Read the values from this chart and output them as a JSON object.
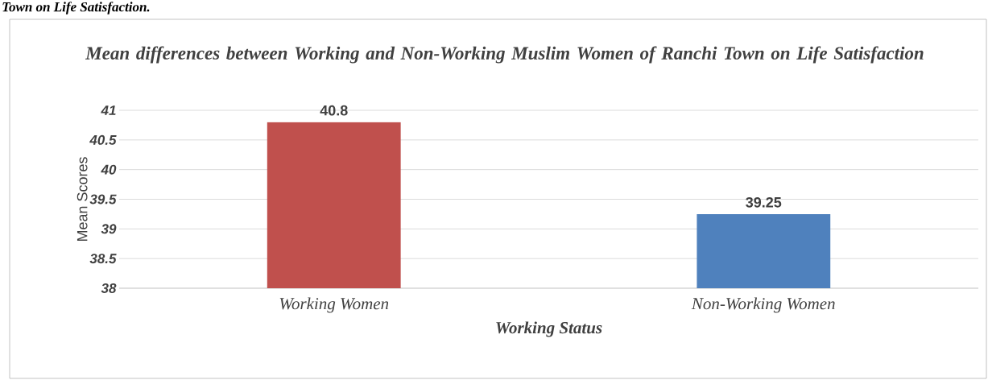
{
  "chart_data": {
    "type": "bar",
    "title": "Mean differences between Working and Non-Working Muslim Women of Ranchi Town on Life Satisfaction",
    "categories": [
      "Working Women",
      "Non-Working Women"
    ],
    "values": [
      40.8,
      39.25
    ],
    "colors": [
      "#c0504d",
      "#4f81bd"
    ],
    "xlabel": "Working Status",
    "ylabel": "Mean Scores",
    "ylim": [
      38,
      41
    ],
    "yticks": [
      38,
      38.5,
      39,
      39.5,
      40,
      40.5,
      41
    ],
    "grid": "y",
    "data_labels": true,
    "annotations": [
      "Town on Life Satisfaction."
    ]
  }
}
